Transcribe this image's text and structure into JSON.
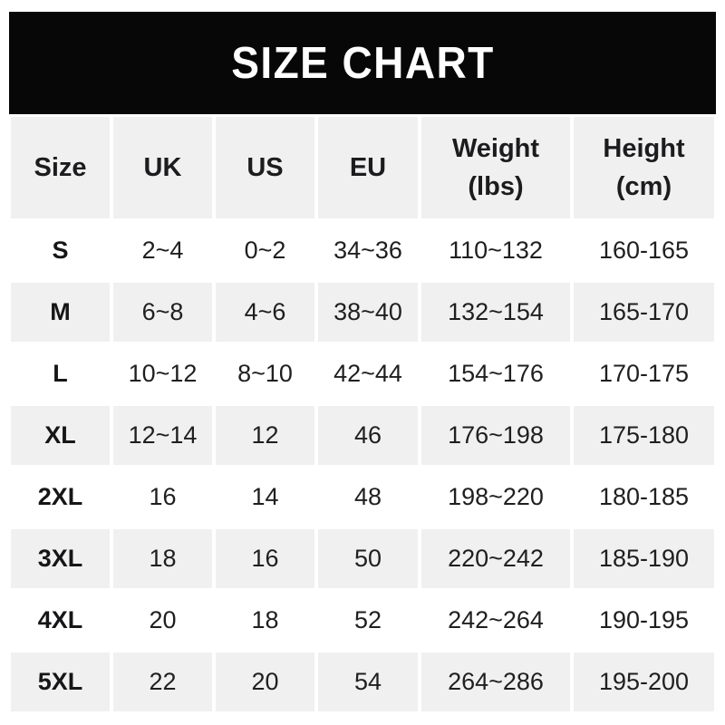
{
  "banner": {
    "title": "SIZE CHART",
    "bg_color": "#070707",
    "text_color": "#ffffff"
  },
  "table": {
    "stripe_color": "#f0f0f0",
    "text_color": "#1f1f1f",
    "headers": [
      "Size",
      "UK",
      "US",
      "EU",
      "Weight\n(lbs)",
      "Height\n(cm)"
    ],
    "rows": [
      {
        "size": "S",
        "uk": "2~4",
        "us": "0~2",
        "eu": "34~36",
        "weight": "110~132",
        "height": "160-165"
      },
      {
        "size": "M",
        "uk": "6~8",
        "us": "4~6",
        "eu": "38~40",
        "weight": "132~154",
        "height": "165-170"
      },
      {
        "size": "L",
        "uk": "10~12",
        "us": "8~10",
        "eu": "42~44",
        "weight": "154~176",
        "height": "170-175"
      },
      {
        "size": "XL",
        "uk": "12~14",
        "us": "12",
        "eu": "46",
        "weight": "176~198",
        "height": "175-180"
      },
      {
        "size": "2XL",
        "uk": "16",
        "us": "14",
        "eu": "48",
        "weight": "198~220",
        "height": "180-185"
      },
      {
        "size": "3XL",
        "uk": "18",
        "us": "16",
        "eu": "50",
        "weight": "220~242",
        "height": "185-190"
      },
      {
        "size": "4XL",
        "uk": "20",
        "us": "18",
        "eu": "52",
        "weight": "242~264",
        "height": "190-195"
      },
      {
        "size": "5XL",
        "uk": "22",
        "us": "20",
        "eu": "54",
        "weight": "264~286",
        "height": "195-200"
      }
    ]
  },
  "chart_data": {
    "type": "table",
    "title": "SIZE CHART",
    "columns": [
      "Size",
      "UK",
      "US",
      "EU",
      "Weight (lbs)",
      "Height (cm)"
    ],
    "rows": [
      [
        "S",
        "2~4",
        "0~2",
        "34~36",
        "110~132",
        "160-165"
      ],
      [
        "M",
        "6~8",
        "4~6",
        "38~40",
        "132~154",
        "165-170"
      ],
      [
        "L",
        "10~12",
        "8~10",
        "42~44",
        "154~176",
        "170-175"
      ],
      [
        "XL",
        "12~14",
        "12",
        "46",
        "176~198",
        "175-180"
      ],
      [
        "2XL",
        "16",
        "14",
        "48",
        "198~220",
        "180-185"
      ],
      [
        "3XL",
        "18",
        "16",
        "50",
        "220~242",
        "185-190"
      ],
      [
        "4XL",
        "20",
        "18",
        "52",
        "242~264",
        "190-195"
      ],
      [
        "5XL",
        "22",
        "20",
        "54",
        "264~286",
        "195-200"
      ]
    ]
  }
}
